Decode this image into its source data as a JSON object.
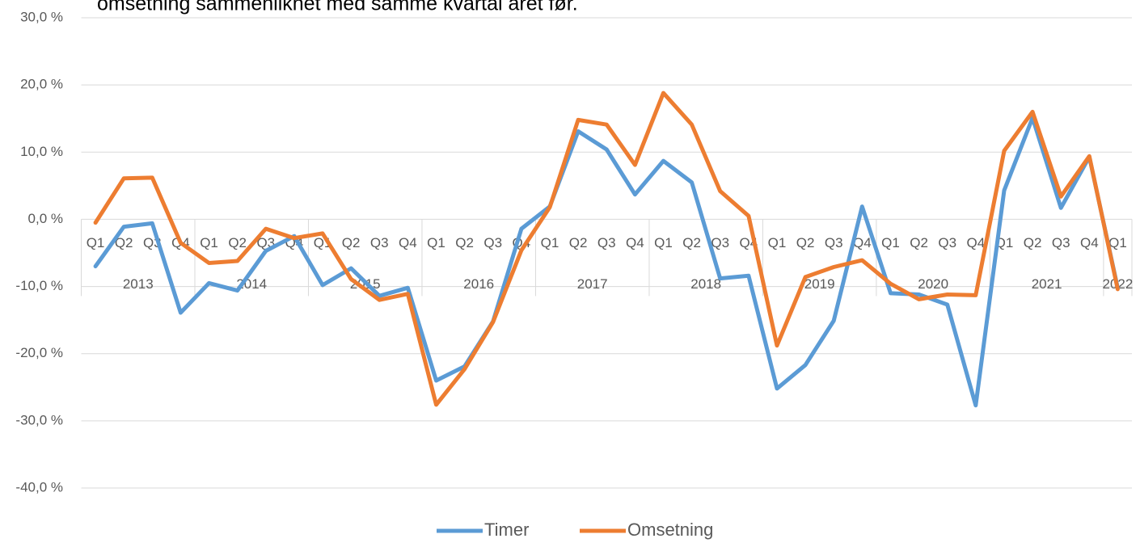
{
  "chart_data": {
    "type": "line",
    "title": "omsetning sammenliknet med samme kvartal året før.",
    "categories": [
      "Q1",
      "Q2",
      "Q3",
      "Q4",
      "Q1",
      "Q2",
      "Q3",
      "Q4",
      "Q1",
      "Q2",
      "Q3",
      "Q4",
      "Q1",
      "Q2",
      "Q3",
      "Q4",
      "Q1",
      "Q2",
      "Q3",
      "Q4",
      "Q1",
      "Q2",
      "Q3",
      "Q4",
      "Q1",
      "Q2",
      "Q3",
      "Q4",
      "Q1",
      "Q2",
      "Q3",
      "Q4",
      "Q1",
      "Q2",
      "Q3",
      "Q4",
      "Q1"
    ],
    "years": [
      "2013",
      "2014",
      "2015",
      "2016",
      "2017",
      "2018",
      "2019",
      "2020",
      "2021",
      "2022"
    ],
    "series": [
      {
        "name": "Timer",
        "color": "#5b9bd5",
        "values": [
          -7.0,
          -1.1,
          -0.6,
          -13.9,
          -9.5,
          -10.6,
          -4.7,
          -2.5,
          -9.8,
          -7.3,
          -11.4,
          -10.2,
          -24.0,
          -21.9,
          -15.2,
          -1.4,
          1.9,
          13.1,
          10.4,
          3.7,
          8.7,
          5.5,
          -8.8,
          -8.4,
          -25.2,
          -21.7,
          -15.1,
          1.9,
          -11.0,
          -11.2,
          -12.7,
          -27.7,
          4.3,
          15.1,
          1.7,
          9.3,
          -10.2
        ]
      },
      {
        "name": "Omsetning",
        "color": "#ed7d31",
        "values": [
          -0.5,
          6.1,
          6.2,
          -3.5,
          -6.5,
          -6.2,
          -1.4,
          -2.8,
          -2.1,
          -8.9,
          -12.0,
          -11.1,
          -27.6,
          -22.3,
          -15.3,
          -4.6,
          1.8,
          14.8,
          14.1,
          8.1,
          18.8,
          14.1,
          4.2,
          0.5,
          -18.8,
          -8.6,
          -7.1,
          -6.1,
          -9.6,
          -11.9,
          -11.2,
          -11.3,
          10.2,
          16.0,
          3.4,
          9.4,
          -10.4
        ]
      }
    ],
    "ylim": [
      -40,
      30
    ],
    "yticks": [
      {
        "value": -40,
        "label": "-40,0 %"
      },
      {
        "value": -30,
        "label": "-30,0 %"
      },
      {
        "value": -20,
        "label": "-20,0 %"
      },
      {
        "value": -10,
        "label": "-10,0 %"
      },
      {
        "value": 0,
        "label": "0,0 %"
      },
      {
        "value": 10,
        "label": "10,0 %"
      },
      {
        "value": 20,
        "label": "20,0 %"
      },
      {
        "value": 30,
        "label": "30,0 %"
      }
    ],
    "grid": true,
    "legend": "bottom"
  }
}
